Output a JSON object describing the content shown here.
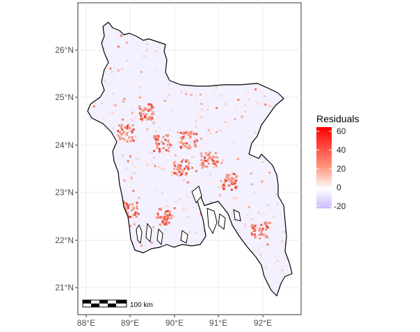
{
  "map": {
    "lat_labels": [
      "26°N",
      "25°N",
      "24°N",
      "23°N",
      "22°N",
      "21°N"
    ],
    "lon_labels": [
      "88°E",
      "89°E",
      "90°E",
      "91°E",
      "92°E"
    ],
    "scale_bar_label": "100 km",
    "land_color": "#f3f1ff",
    "border_color": "#000000"
  },
  "legend": {
    "title": "Residuals",
    "labels": [
      "60",
      "40",
      "20",
      "0",
      "-20"
    ],
    "colors": {
      "high": "#ff0000",
      "mid": "#ffffff",
      "low": "#cbb8ff"
    }
  }
}
